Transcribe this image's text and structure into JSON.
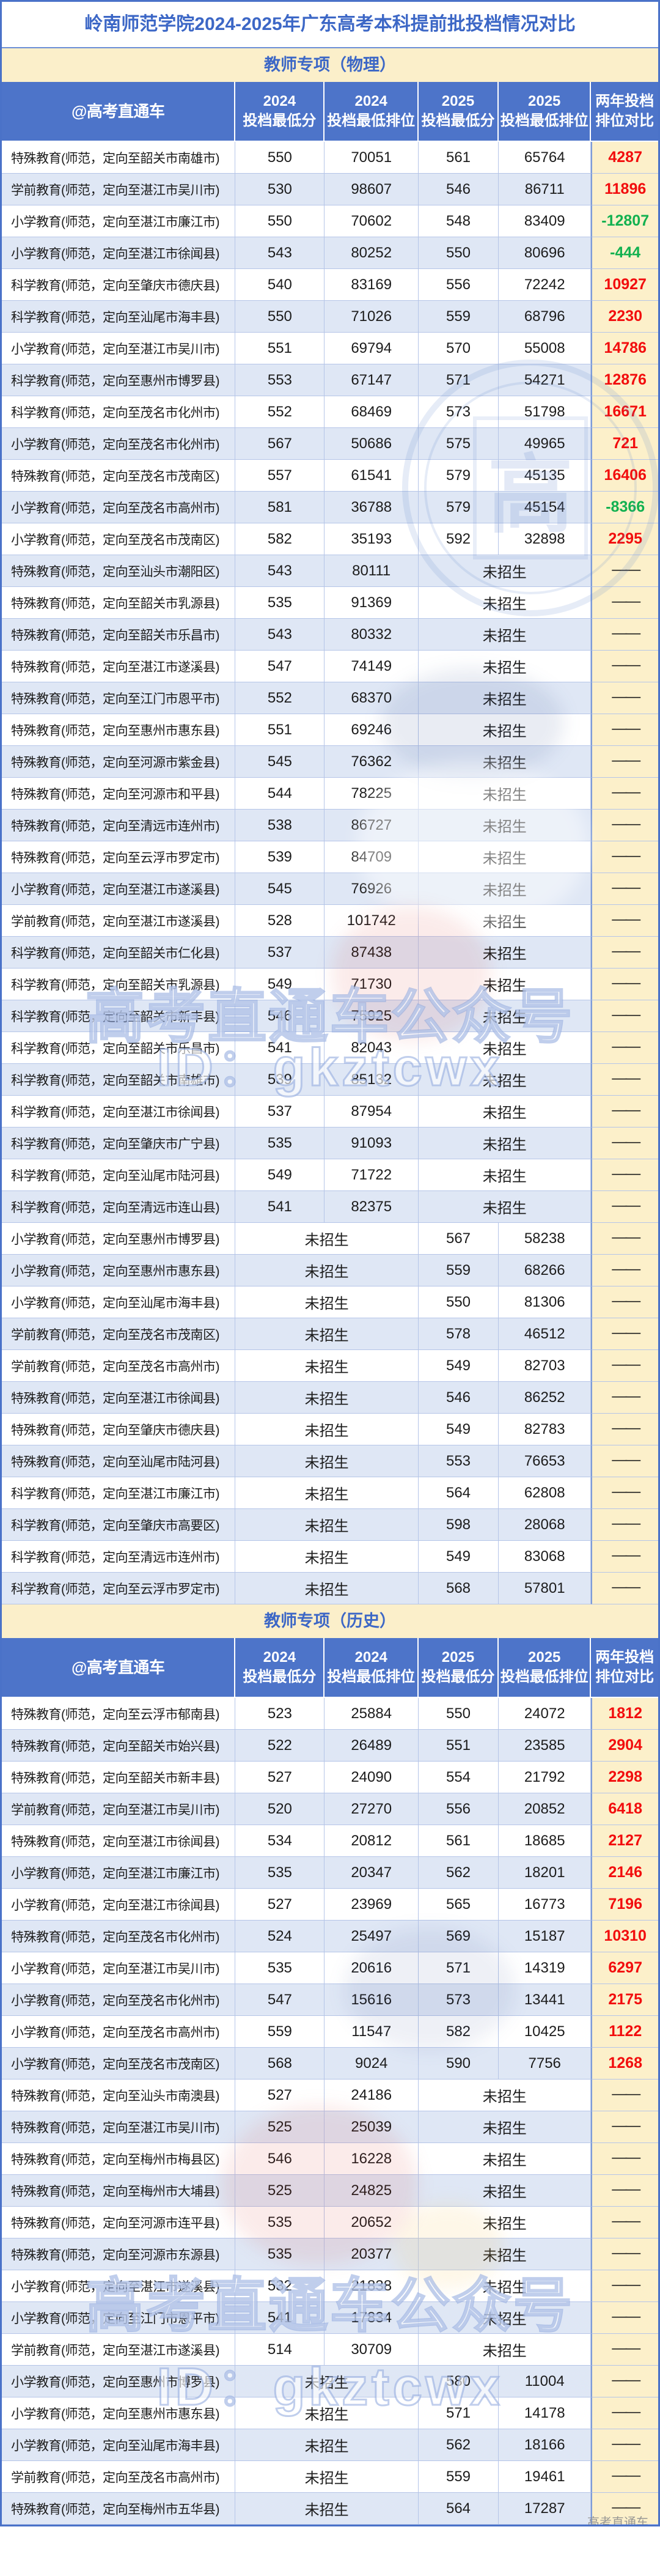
{
  "title": "岭南师范学院2024-2025年广东高考本科提前批投档情况对比",
  "table": {
    "handle": "@高考直通车",
    "columns": [
      [
        "2024",
        "投档最低分"
      ],
      [
        "2024",
        "投档最低排位"
      ],
      [
        "2025",
        "投档最低分"
      ],
      [
        "2025",
        "投档最低排位"
      ],
      [
        "两年投档",
        "排位对比"
      ]
    ],
    "not_enrolled": "未招生",
    "dash": "——"
  },
  "colors": {
    "header_bg": "#4d74c9",
    "banner_bg": "#fbefca",
    "banner_text": "#3c67c6",
    "title_text": "#3c67c6",
    "stripe_bg": "#dfe7f5",
    "compare_bg": "#fcf0ca",
    "positive_diff": "#f20d0d",
    "negative_diff": "#12b150",
    "border_blue": "#4a72c8"
  },
  "watermarks": {
    "seal_char": "高",
    "brand_text": "高考直通车公众号",
    "id_text": "ID：gkztcwx",
    "corner_text": "高考直通车"
  },
  "sections": [
    {
      "banner": "教师专项（物理）",
      "rows": [
        [
          "特殊教育(师范，定向至韶关市南雄市)",
          "550",
          "70051",
          "561",
          "65764",
          "4287"
        ],
        [
          "学前教育(师范，定向至湛江市吴川市)",
          "530",
          "98607",
          "546",
          "86711",
          "11896"
        ],
        [
          "小学教育(师范，定向至湛江市廉江市)",
          "550",
          "70602",
          "548",
          "83409",
          "-12807"
        ],
        [
          "小学教育(师范，定向至湛江市徐闻县)",
          "543",
          "80252",
          "550",
          "80696",
          "-444"
        ],
        [
          "科学教育(师范，定向至肇庆市德庆县)",
          "540",
          "83169",
          "556",
          "72242",
          "10927"
        ],
        [
          "科学教育(师范，定向至汕尾市海丰县)",
          "550",
          "71026",
          "559",
          "68796",
          "2230"
        ],
        [
          "小学教育(师范，定向至湛江市吴川市)",
          "551",
          "69794",
          "570",
          "55008",
          "14786"
        ],
        [
          "科学教育(师范，定向至惠州市博罗县)",
          "553",
          "67147",
          "571",
          "54271",
          "12876"
        ],
        [
          "科学教育(师范，定向至茂名市化州市)",
          "552",
          "68469",
          "573",
          "51798",
          "16671"
        ],
        [
          "小学教育(师范，定向至茂名市化州市)",
          "567",
          "50686",
          "575",
          "49965",
          "721"
        ],
        [
          "特殊教育(师范，定向至茂名市茂南区)",
          "557",
          "61541",
          "579",
          "45135",
          "16406"
        ],
        [
          "小学教育(师范，定向至茂名市高州市)",
          "581",
          "36788",
          "579",
          "45154",
          "-8366"
        ],
        [
          "小学教育(师范，定向至茂名市茂南区)",
          "582",
          "35193",
          "592",
          "32898",
          "2295"
        ],
        [
          "特殊教育(师范，定向至汕头市潮阳区)",
          "543",
          "80111",
          null,
          null,
          null
        ],
        [
          "特殊教育(师范，定向至韶关市乳源县)",
          "535",
          "91369",
          null,
          null,
          null
        ],
        [
          "特殊教育(师范，定向至韶关市乐昌市)",
          "543",
          "80332",
          null,
          null,
          null
        ],
        [
          "特殊教育(师范，定向至湛江市遂溪县)",
          "547",
          "74149",
          null,
          null,
          null
        ],
        [
          "特殊教育(师范，定向至江门市恩平市)",
          "552",
          "68370",
          null,
          null,
          null
        ],
        [
          "特殊教育(师范，定向至惠州市惠东县)",
          "551",
          "69246",
          null,
          null,
          null
        ],
        [
          "特殊教育(师范，定向至河源市紫金县)",
          "545",
          "76362",
          null,
          null,
          null
        ],
        [
          "特殊教育(师范，定向至河源市和平县)",
          "544",
          "78225",
          null,
          null,
          null
        ],
        [
          "特殊教育(师范，定向至清远市连州市)",
          "538",
          "86727",
          null,
          null,
          null
        ],
        [
          "特殊教育(师范，定向至云浮市罗定市)",
          "539",
          "84709",
          null,
          null,
          null
        ],
        [
          "小学教育(师范，定向至湛江市遂溪县)",
          "545",
          "76926",
          null,
          null,
          null
        ],
        [
          "学前教育(师范，定向至湛江市遂溪县)",
          "528",
          "101742",
          null,
          null,
          null
        ],
        [
          "科学教育(师范，定向至韶关市仁化县)",
          "537",
          "87438",
          null,
          null,
          null
        ],
        [
          "科学教育(师范，定向至韶关市乳源县)",
          "549",
          "71730",
          null,
          null,
          null
        ],
        [
          "科学教育(师范，定向至韶关市新丰县)",
          "546",
          "75925",
          null,
          null,
          null
        ],
        [
          "科学教育(师范，定向至韶关市乐昌市)",
          "541",
          "82043",
          null,
          null,
          null
        ],
        [
          "科学教育(师范，定向至韶关市南雄市)",
          "539",
          "85132",
          null,
          null,
          null
        ],
        [
          "科学教育(师范，定向至湛江市徐闻县)",
          "537",
          "87954",
          null,
          null,
          null
        ],
        [
          "科学教育(师范，定向至肇庆市广宁县)",
          "535",
          "91093",
          null,
          null,
          null
        ],
        [
          "科学教育(师范，定向至汕尾市陆河县)",
          "549",
          "71722",
          null,
          null,
          null
        ],
        [
          "科学教育(师范，定向至清远市连山县)",
          "541",
          "82375",
          null,
          null,
          null
        ],
        [
          "小学教育(师范，定向至惠州市博罗县)",
          null,
          null,
          "567",
          "58238",
          null
        ],
        [
          "小学教育(师范，定向至惠州市惠东县)",
          null,
          null,
          "559",
          "68266",
          null
        ],
        [
          "小学教育(师范，定向至汕尾市海丰县)",
          null,
          null,
          "550",
          "81306",
          null
        ],
        [
          "学前教育(师范，定向至茂名市茂南区)",
          null,
          null,
          "578",
          "46512",
          null
        ],
        [
          "学前教育(师范，定向至茂名市高州市)",
          null,
          null,
          "549",
          "82703",
          null
        ],
        [
          "特殊教育(师范，定向至湛江市徐闻县)",
          null,
          null,
          "546",
          "86252",
          null
        ],
        [
          "特殊教育(师范，定向至肇庆市德庆县)",
          null,
          null,
          "549",
          "82783",
          null
        ],
        [
          "特殊教育(师范，定向至汕尾市陆河县)",
          null,
          null,
          "553",
          "76653",
          null
        ],
        [
          "科学教育(师范，定向至湛江市廉江市)",
          null,
          null,
          "564",
          "62808",
          null
        ],
        [
          "科学教育(师范，定向至肇庆市高要区)",
          null,
          null,
          "598",
          "28068",
          null
        ],
        [
          "科学教育(师范，定向至清远市连州市)",
          null,
          null,
          "549",
          "83068",
          null
        ],
        [
          "科学教育(师范，定向至云浮市罗定市)",
          null,
          null,
          "568",
          "57801",
          null
        ]
      ]
    },
    {
      "banner": "教师专项（历史）",
      "rows": [
        [
          "特殊教育(师范，定向至云浮市郁南县)",
          "523",
          "25884",
          "550",
          "24072",
          "1812"
        ],
        [
          "特殊教育(师范，定向至韶关市始兴县)",
          "522",
          "26489",
          "551",
          "23585",
          "2904"
        ],
        [
          "特殊教育(师范，定向至韶关市新丰县)",
          "527",
          "24090",
          "554",
          "21792",
          "2298"
        ],
        [
          "学前教育(师范，定向至湛江市吴川市)",
          "520",
          "27270",
          "556",
          "20852",
          "6418"
        ],
        [
          "特殊教育(师范，定向至湛江市徐闻县)",
          "534",
          "20812",
          "561",
          "18685",
          "2127"
        ],
        [
          "小学教育(师范，定向至湛江市廉江市)",
          "535",
          "20347",
          "562",
          "18201",
          "2146"
        ],
        [
          "小学教育(师范，定向至湛江市徐闻县)",
          "527",
          "23969",
          "565",
          "16773",
          "7196"
        ],
        [
          "特殊教育(师范，定向至茂名市化州市)",
          "524",
          "25497",
          "569",
          "15187",
          "10310"
        ],
        [
          "小学教育(师范，定向至湛江市吴川市)",
          "535",
          "20616",
          "571",
          "14319",
          "6297"
        ],
        [
          "小学教育(师范，定向至茂名市化州市)",
          "547",
          "15616",
          "573",
          "13441",
          "2175"
        ],
        [
          "小学教育(师范，定向至茂名市高州市)",
          "559",
          "11547",
          "582",
          "10425",
          "1122"
        ],
        [
          "小学教育(师范，定向至茂名市茂南区)",
          "568",
          "9024",
          "590",
          "7756",
          "1268"
        ],
        [
          "特殊教育(师范，定向至汕头市南澳县)",
          "527",
          "24186",
          null,
          null,
          null
        ],
        [
          "特殊教育(师范，定向至湛江市吴川市)",
          "525",
          "25039",
          null,
          null,
          null
        ],
        [
          "特殊教育(师范，定向至梅州市梅县区)",
          "546",
          "16228",
          null,
          null,
          null
        ],
        [
          "特殊教育(师范，定向至梅州市大埔县)",
          "525",
          "24825",
          null,
          null,
          null
        ],
        [
          "特殊教育(师范，定向至河源市连平县)",
          "535",
          "20652",
          null,
          null,
          null
        ],
        [
          "特殊教育(师范，定向至河源市东源县)",
          "535",
          "20377",
          null,
          null,
          null
        ],
        [
          "小学教育(师范，定向至湛江市遂溪县)",
          "532",
          "21838",
          null,
          null,
          null
        ],
        [
          "小学教育(师范，定向至江门市恩平市)",
          "541",
          "17834",
          null,
          null,
          null
        ],
        [
          "学前教育(师范，定向至湛江市遂溪县)",
          "514",
          "30709",
          null,
          null,
          null
        ],
        [
          "小学教育(师范，定向至惠州市博罗县)",
          null,
          null,
          "580",
          "11004",
          null
        ],
        [
          "小学教育(师范，定向至惠州市惠东县)",
          null,
          null,
          "571",
          "14178",
          null
        ],
        [
          "小学教育(师范，定向至汕尾市海丰县)",
          null,
          null,
          "562",
          "18166",
          null
        ],
        [
          "学前教育(师范，定向至茂名市高州市)",
          null,
          null,
          "559",
          "19461",
          null
        ],
        [
          "特殊教育(师范，定向至梅州市五华县)",
          null,
          null,
          "564",
          "17287",
          null
        ]
      ]
    }
  ]
}
